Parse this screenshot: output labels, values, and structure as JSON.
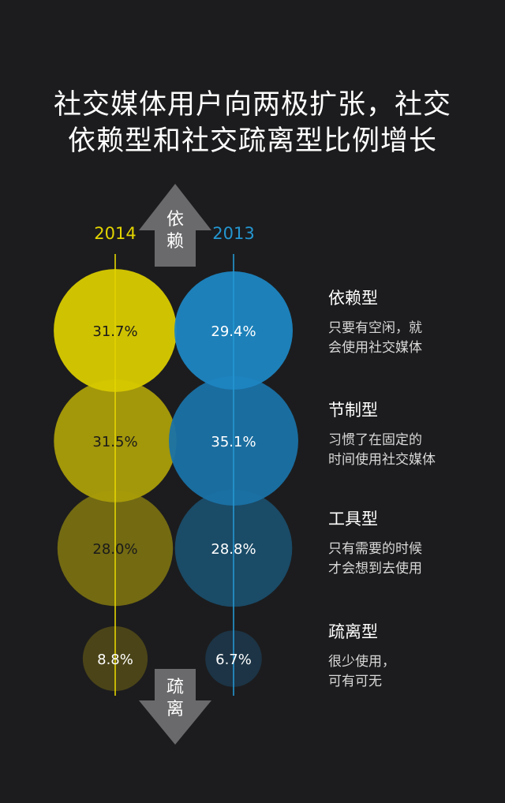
{
  "header": {
    "title_line1": "社交媒体用户向两极扩张，社交",
    "title_line2": "依赖型和社交疏离型比例增长"
  },
  "arrows": {
    "up_label": [
      "依",
      "赖"
    ],
    "down_label": [
      "疏",
      "离"
    ]
  },
  "legend": [
    {
      "title": "依赖型",
      "desc": [
        "只要有空闲，就",
        "会使用社交媒体"
      ]
    },
    {
      "title": "节制型",
      "desc": [
        "习惯了在固定的",
        "时间使用社交媒体"
      ]
    },
    {
      "title": "工具型",
      "desc": [
        "只有需要的时候",
        "才会想到去使用"
      ]
    },
    {
      "title": "疏离型",
      "desc": [
        "很少使用，",
        "可有可无"
      ]
    }
  ],
  "colors": {
    "background": "#1c1c1e",
    "series_2014_line": "#e2d400",
    "series_2013_line": "#2496d0",
    "series_2014_fills": [
      "#d6c800",
      "#a89c09",
      "#776d12",
      "#4d4618"
    ],
    "series_2013_fills": [
      "#1d86c2",
      "#1a72a6",
      "#1a4e6c",
      "#1c3648"
    ],
    "arrow": "#6a6a6c"
  },
  "chart_data": {
    "type": "bubble",
    "categories": [
      "依赖型",
      "节制型",
      "工具型",
      "疏离型"
    ],
    "series": [
      {
        "name": "2014",
        "values": [
          31.7,
          31.5,
          28.0,
          8.8
        ],
        "labels": [
          "31.7%",
          "31.5%",
          "28.0%",
          "8.8%"
        ]
      },
      {
        "name": "2013",
        "values": [
          29.4,
          35.1,
          28.8,
          6.7
        ],
        "labels": [
          "29.4%",
          "35.1%",
          "28.8%",
          "6.7%"
        ]
      }
    ]
  }
}
